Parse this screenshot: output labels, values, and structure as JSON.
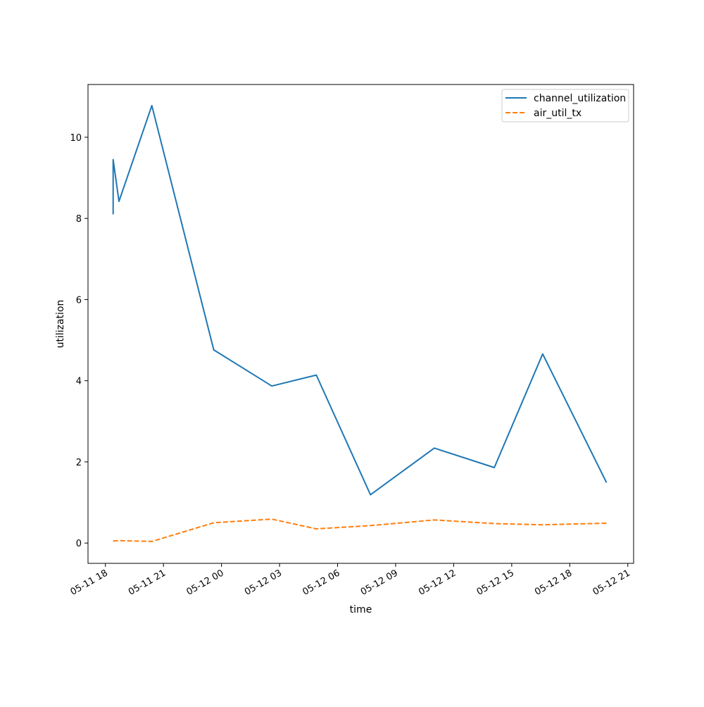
{
  "chart_data": {
    "type": "line",
    "xlabel": "time",
    "ylabel": "utilization",
    "x_ticks": [
      "05-11 18",
      "05-11 21",
      "05-12 00",
      "05-12 03",
      "05-12 06",
      "05-12 09",
      "05-12 12",
      "05-12 15",
      "05-12 18",
      "05-12 21"
    ],
    "y_ticks": [
      "0",
      "2",
      "4",
      "6",
      "8",
      "10"
    ],
    "xlim_hours": [
      -0.9,
      27.3
    ],
    "ylim": [
      -0.5,
      11.3
    ],
    "grid": false,
    "legend_position": "top-right",
    "series": [
      {
        "name": "channel_utilization",
        "color": "#1f77b4",
        "style": "solid",
        "points": [
          {
            "x": "05-11 18:24",
            "y": 8.1
          },
          {
            "x": "05-11 18:24",
            "y": 9.45
          },
          {
            "x": "05-11 18:42",
            "y": 8.42
          },
          {
            "x": "05-11 20:24",
            "y": 10.78
          },
          {
            "x": "05-11 23:36",
            "y": 4.76
          },
          {
            "x": "05-12 02:36",
            "y": 3.87
          },
          {
            "x": "05-12 04:54",
            "y": 4.14
          },
          {
            "x": "05-12 07:42",
            "y": 1.19
          },
          {
            "x": "05-12 11:00",
            "y": 2.34
          },
          {
            "x": "05-12 14:06",
            "y": 1.86
          },
          {
            "x": "05-12 16:36",
            "y": 4.66
          },
          {
            "x": "05-12 19:54",
            "y": 1.49
          }
        ]
      },
      {
        "name": "air_util_tx",
        "color": "#ff7f0e",
        "style": "dashed",
        "points": [
          {
            "x": "05-11 18:24",
            "y": 0.05
          },
          {
            "x": "05-11 18:42",
            "y": 0.06
          },
          {
            "x": "05-11 20:24",
            "y": 0.04
          },
          {
            "x": "05-11 23:36",
            "y": 0.5
          },
          {
            "x": "05-12 02:36",
            "y": 0.59
          },
          {
            "x": "05-12 04:54",
            "y": 0.35
          },
          {
            "x": "05-12 07:42",
            "y": 0.43
          },
          {
            "x": "05-12 11:00",
            "y": 0.57
          },
          {
            "x": "05-12 14:06",
            "y": 0.48
          },
          {
            "x": "05-12 16:36",
            "y": 0.45
          },
          {
            "x": "05-12 19:54",
            "y": 0.49
          }
        ]
      }
    ]
  }
}
